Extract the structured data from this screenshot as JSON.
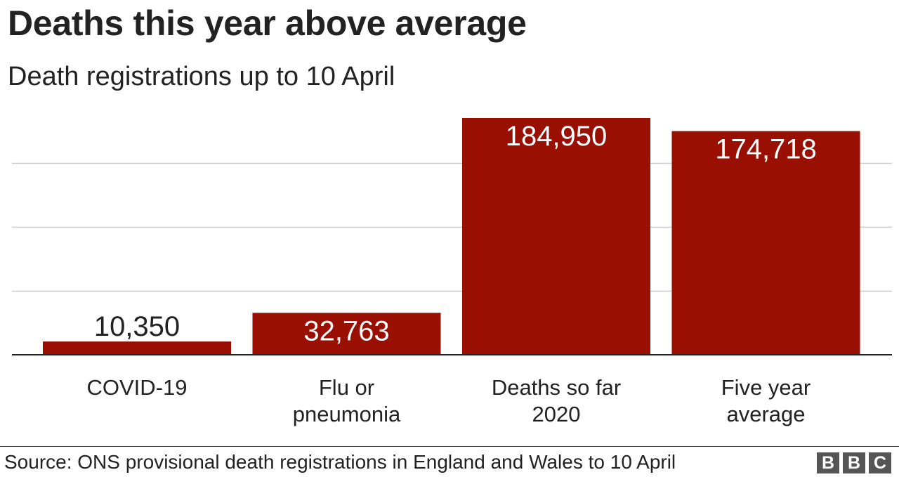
{
  "chart_data": {
    "type": "bar",
    "title": "Deaths this year above average",
    "subtitle": "Death registrations up to 10 April",
    "categories": [
      "COVID-19",
      "Flu or pneumonia",
      "Deaths so far 2020",
      "Five year average"
    ],
    "category_lines": [
      [
        "COVID-19"
      ],
      [
        "Flu or",
        "pneumonia"
      ],
      [
        "Deaths so far",
        "2020"
      ],
      [
        "Five year",
        "average"
      ]
    ],
    "values": [
      10350,
      32763,
      184950,
      174718
    ],
    "value_labels": [
      "10,350",
      "32,763",
      "184,950",
      "174,718"
    ],
    "ylim": [
      0,
      184950
    ],
    "gridlines": [
      50000,
      100000,
      150000
    ],
    "grid": true,
    "bar_color": "#990f02",
    "source": "Source: ONS provisional death registrations in England and Wales to 10 April"
  },
  "logo": {
    "letters": [
      "B",
      "B",
      "C"
    ],
    "color": "#555555"
  }
}
